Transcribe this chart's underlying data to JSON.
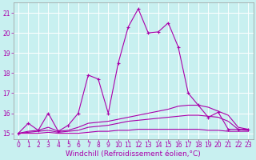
{
  "bg_color": "#c8f0f0",
  "grid_color": "#ffffff",
  "line_color": "#aa00aa",
  "xlabel": "Windchill (Refroidissement éolien,°C)",
  "xlabel_fontsize": 6.5,
  "tick_fontsize": 5.5,
  "xlim": [
    -0.5,
    23.5
  ],
  "ylim": [
    14.72,
    21.5
  ],
  "yticks": [
    15,
    16,
    17,
    18,
    19,
    20,
    21
  ],
  "xticks": [
    0,
    1,
    2,
    3,
    4,
    5,
    6,
    7,
    8,
    9,
    10,
    11,
    12,
    13,
    14,
    15,
    16,
    17,
    18,
    19,
    20,
    21,
    22,
    23
  ],
  "series": [
    {
      "x": [
        0,
        1,
        2,
        3,
        4,
        5,
        6,
        7,
        8,
        9,
        10,
        11,
        12,
        13,
        14,
        15,
        16,
        17,
        18,
        19,
        20,
        21,
        22,
        23
      ],
      "y": [
        15.0,
        15.5,
        15.15,
        16.0,
        15.1,
        15.4,
        16.0,
        17.9,
        17.7,
        16.0,
        18.5,
        20.3,
        21.2,
        20.0,
        20.05,
        20.5,
        19.3,
        17.0,
        16.4,
        15.8,
        16.05,
        15.2,
        15.2,
        15.2
      ],
      "marker": true
    },
    {
      "x": [
        0,
        1,
        2,
        3,
        4,
        5,
        6,
        7,
        8,
        9,
        10,
        11,
        12,
        13,
        14,
        15,
        16,
        17,
        18,
        19,
        20,
        21,
        22,
        23
      ],
      "y": [
        15.0,
        15.1,
        15.15,
        15.3,
        15.1,
        15.15,
        15.3,
        15.5,
        15.55,
        15.6,
        15.7,
        15.8,
        15.9,
        16.0,
        16.1,
        16.2,
        16.35,
        16.4,
        16.4,
        16.3,
        16.1,
        15.9,
        15.3,
        15.2
      ],
      "marker": false
    },
    {
      "x": [
        0,
        1,
        2,
        3,
        4,
        5,
        6,
        7,
        8,
        9,
        10,
        11,
        12,
        13,
        14,
        15,
        16,
        17,
        18,
        19,
        20,
        21,
        22,
        23
      ],
      "y": [
        15.0,
        15.05,
        15.1,
        15.15,
        15.05,
        15.1,
        15.15,
        15.3,
        15.35,
        15.4,
        15.5,
        15.6,
        15.65,
        15.7,
        15.75,
        15.8,
        15.85,
        15.9,
        15.9,
        15.85,
        15.8,
        15.6,
        15.2,
        15.15
      ],
      "marker": false
    },
    {
      "x": [
        0,
        1,
        2,
        3,
        4,
        5,
        6,
        7,
        8,
        9,
        10,
        11,
        12,
        13,
        14,
        15,
        16,
        17,
        18,
        19,
        20,
        21,
        22,
        23
      ],
      "y": [
        15.0,
        15.0,
        15.0,
        15.05,
        15.0,
        15.0,
        15.0,
        15.05,
        15.1,
        15.1,
        15.15,
        15.15,
        15.2,
        15.2,
        15.2,
        15.2,
        15.2,
        15.2,
        15.2,
        15.15,
        15.15,
        15.1,
        15.1,
        15.1
      ],
      "marker": false
    }
  ]
}
